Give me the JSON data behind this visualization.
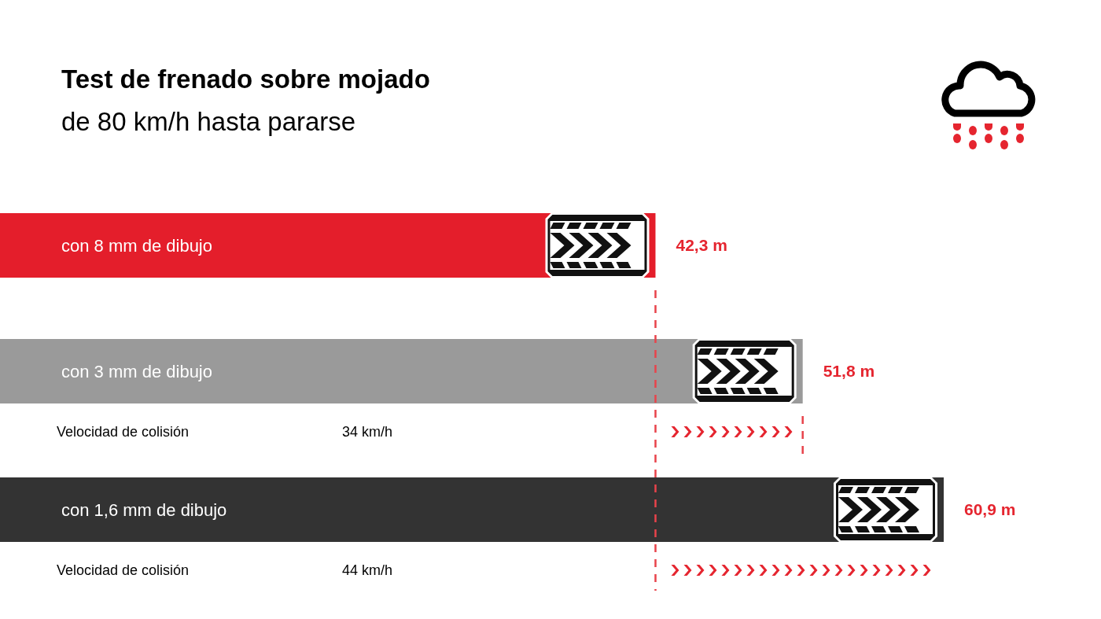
{
  "chart_data": {
    "type": "bar",
    "orientation": "horizontal",
    "title": "Test de frenado sobre mojado",
    "subtitle": "de 80 km/h hasta pararse",
    "categories": [
      "con 8 mm de dibujo",
      "con 3 mm de dibujo",
      "con 1,6 mm de dibujo"
    ],
    "values": [
      42.3,
      51.8,
      60.9
    ],
    "colors": [
      "#e41e2b",
      "#9a9a9a",
      "#333333"
    ],
    "value_labels": [
      "42,3 m",
      "51,8 m",
      "60,9 m"
    ],
    "tick_labels": "y",
    "ref_lines": [
      {
        "axis": "x",
        "value": 42.3,
        "color": "#e8434b",
        "line_style": "dashed"
      },
      {
        "axis": "x",
        "value": 51.8,
        "color": "#e8434b",
        "line_style": "dashed"
      }
    ],
    "annotations": [
      "Velocidad de colisión",
      "34 km/h",
      "Velocidad de colisión",
      "44 km/h"
    ]
  }
}
